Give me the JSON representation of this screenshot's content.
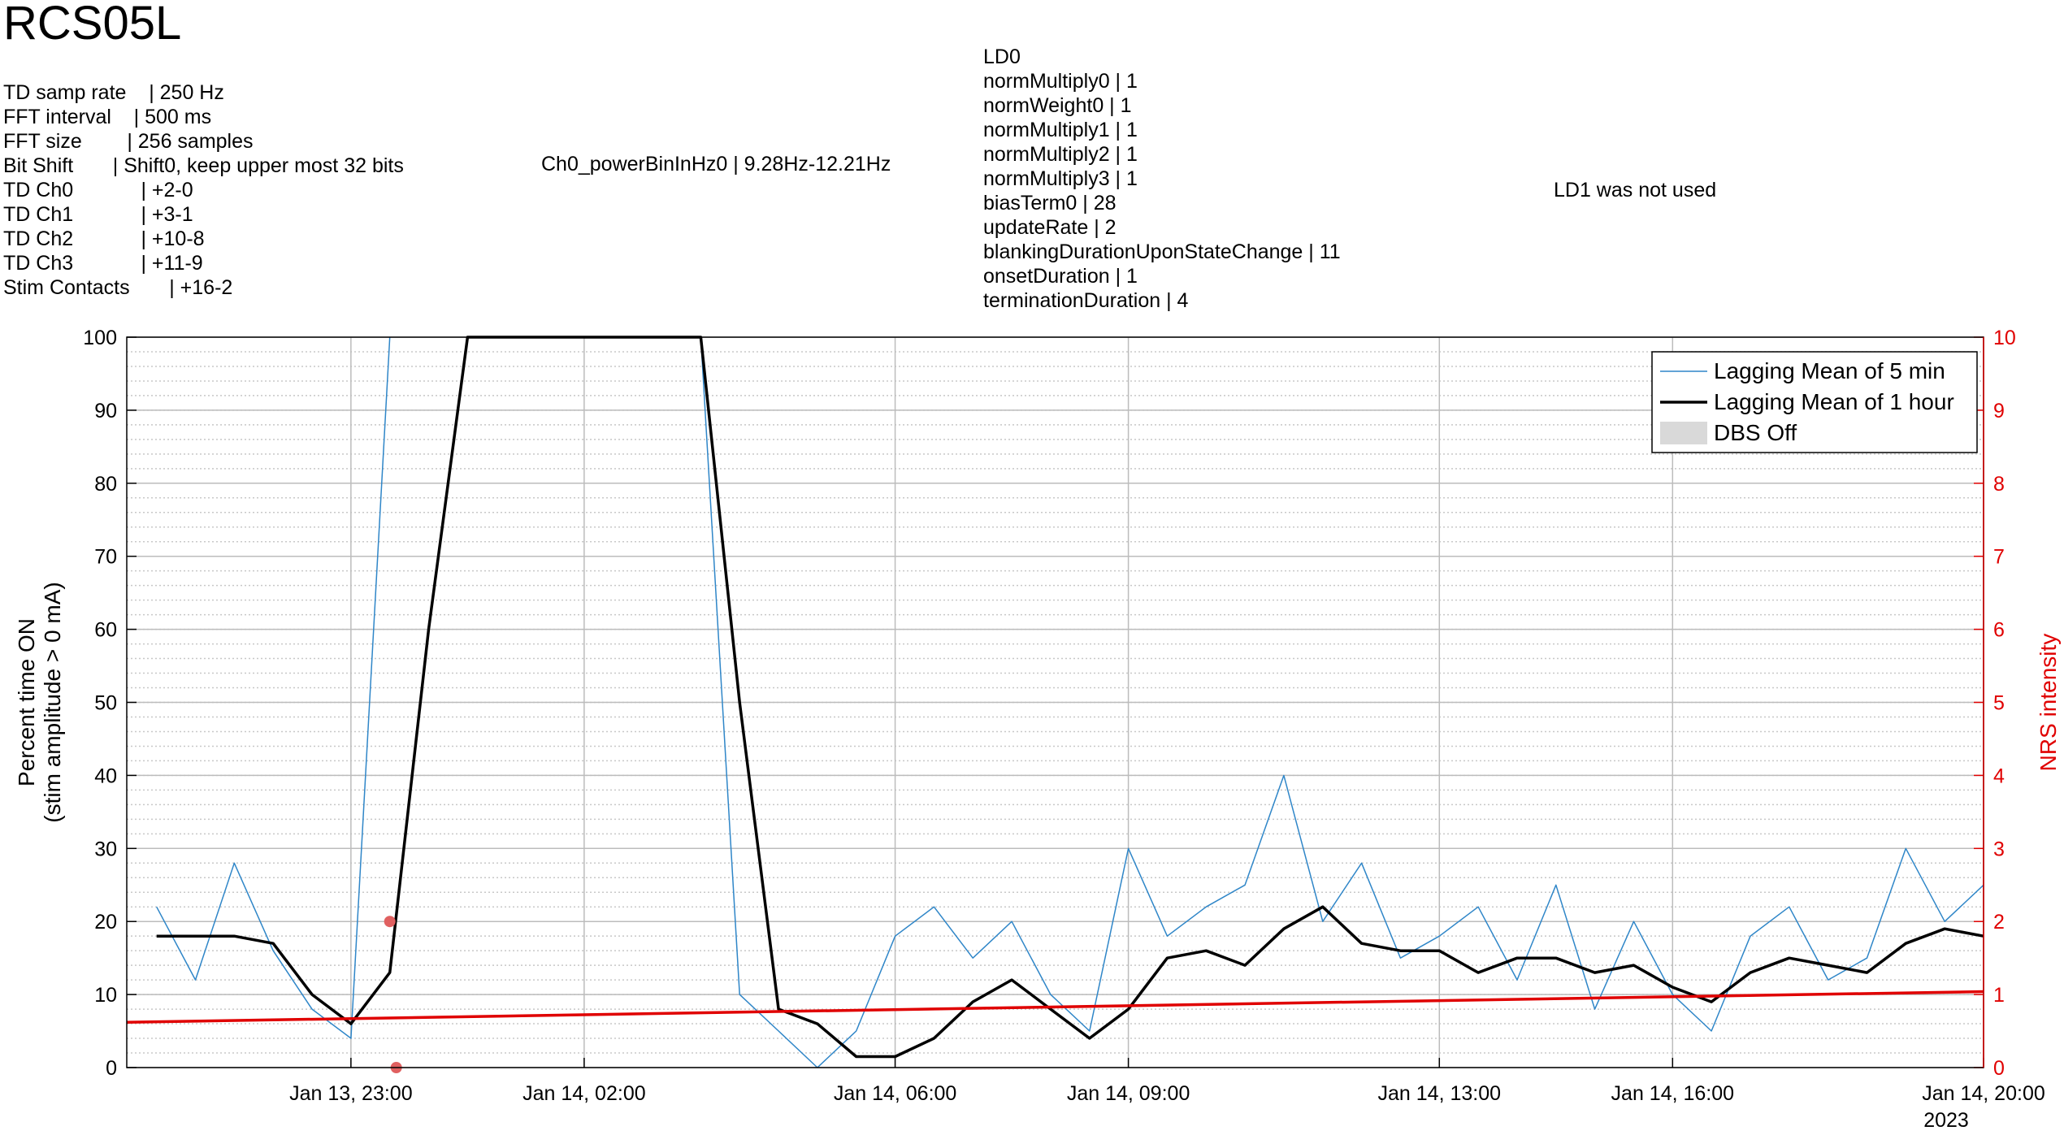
{
  "chart_data": {
    "type": "line",
    "title": "RCS05L",
    "settings_left": [
      "TD samp rate    | 250 Hz",
      "FFT interval    | 500 ms",
      "FFT size        | 256 samples",
      "Bit Shift       | Shift0, keep upper most 32 bits",
      "TD Ch0            | +2-0",
      "TD Ch1            | +3-1",
      "TD Ch2            | +10-8",
      "TD Ch3            | +11-9",
      "Stim Contacts       | +16-2"
    ],
    "settings_middle": "Ch0_powerBinInHz0 | 9.28Hz-12.21Hz",
    "settings_ld0": [
      "LD0",
      "normMultiply0 | 1",
      "normWeight0 | 1",
      "normMultiply1 | 1",
      "normMultiply2 | 1",
      "normMultiply3 | 1",
      "biasTerm0 | 28",
      "updateRate | 2",
      "blankingDurationUponStateChange | 11",
      "onsetDuration | 1",
      "terminationDuration | 4"
    ],
    "settings_ld1": "LD1 was not used",
    "ylabel": [
      "Percent time ON",
      "(stim amplitude > 0 mA)"
    ],
    "y2label": "NRS intensity",
    "x_secondary_label": "2023",
    "xlim": [
      "2023-01-13 20:07",
      "2023-01-14 20:00"
    ],
    "xticks": [
      {
        "value": "2023-01-13 23:00",
        "label": "Jan 13, 23:00"
      },
      {
        "value": "2023-01-14 02:00",
        "label": "Jan 14, 02:00"
      },
      {
        "value": "2023-01-14 06:00",
        "label": "Jan 14, 06:00"
      },
      {
        "value": "2023-01-14 09:00",
        "label": "Jan 14, 09:00"
      },
      {
        "value": "2023-01-14 13:00",
        "label": "Jan 14, 13:00"
      },
      {
        "value": "2023-01-14 16:00",
        "label": "Jan 14, 16:00"
      },
      {
        "value": "2023-01-14 20:00",
        "label": "Jan 14, 20:00"
      }
    ],
    "ylim": [
      0,
      100
    ],
    "yticks": [
      0,
      10,
      20,
      30,
      40,
      50,
      60,
      70,
      80,
      90,
      100
    ],
    "y2lim": [
      0,
      10
    ],
    "y2ticks": [
      0,
      1,
      2,
      3,
      4,
      5,
      6,
      7,
      8,
      9,
      10
    ],
    "y2color": "#e00000",
    "grid": true,
    "minor_grid": true,
    "legend": "upper right",
    "legend_patches": [
      {
        "name": "DBS Off",
        "color": "#d9d9d9"
      }
    ],
    "x": [
      "2023-01-13 20:30",
      "2023-01-13 21:00",
      "2023-01-13 21:30",
      "2023-01-13 22:00",
      "2023-01-13 22:30",
      "2023-01-13 23:00",
      "2023-01-13 23:30",
      "2023-01-14 00:00",
      "2023-01-14 00:30",
      "2023-01-14 01:00",
      "2023-01-14 01:30",
      "2023-01-14 02:00",
      "2023-01-14 02:30",
      "2023-01-14 03:00",
      "2023-01-14 03:30",
      "2023-01-14 04:00",
      "2023-01-14 04:30",
      "2023-01-14 05:00",
      "2023-01-14 05:30",
      "2023-01-14 06:00",
      "2023-01-14 06:30",
      "2023-01-14 07:00",
      "2023-01-14 07:30",
      "2023-01-14 08:00",
      "2023-01-14 08:30",
      "2023-01-14 09:00",
      "2023-01-14 09:30",
      "2023-01-14 10:00",
      "2023-01-14 10:30",
      "2023-01-14 11:00",
      "2023-01-14 11:30",
      "2023-01-14 12:00",
      "2023-01-14 12:30",
      "2023-01-14 13:00",
      "2023-01-14 13:30",
      "2023-01-14 14:00",
      "2023-01-14 14:30",
      "2023-01-14 15:00",
      "2023-01-14 15:30",
      "2023-01-14 16:00",
      "2023-01-14 16:30",
      "2023-01-14 17:00",
      "2023-01-14 17:30",
      "2023-01-14 18:00",
      "2023-01-14 18:30",
      "2023-01-14 19:00",
      "2023-01-14 19:30",
      "2023-01-14 20:00"
    ],
    "series": [
      {
        "name": "Lagging Mean of 5 min",
        "color": "#2f86c8",
        "width": 1.5,
        "values": [
          22,
          12,
          28,
          16,
          8,
          4,
          100,
          null,
          null,
          null,
          null,
          null,
          null,
          null,
          100,
          10,
          5,
          0,
          5,
          18,
          22,
          15,
          20,
          10,
          5,
          30,
          18,
          22,
          25,
          40,
          20,
          28,
          15,
          18,
          22,
          12,
          25,
          8,
          20,
          10,
          5,
          18,
          22,
          12,
          15,
          30,
          20,
          25
        ]
      },
      {
        "name": "Lagging Mean of 1 hour",
        "color": "#000000",
        "width": 3.5,
        "values": [
          18,
          18,
          18,
          17,
          10,
          6,
          13,
          60,
          100,
          100,
          100,
          100,
          100,
          100,
          100,
          50,
          8,
          6,
          1.5,
          1.5,
          4,
          9,
          12,
          8,
          4,
          8,
          15,
          16,
          14,
          19,
          22,
          17,
          16,
          16,
          13,
          15,
          15,
          13,
          14,
          11,
          9,
          13,
          15,
          14,
          13,
          17,
          19,
          18
        ]
      },
      {
        "type": "line",
        "axis": "y2",
        "color": "#e00000",
        "width": 3.5,
        "x": [
          "2023-01-13 20:07",
          "2023-01-14 20:00"
        ],
        "values": [
          0.62,
          1.04
        ]
      },
      {
        "type": "scatter",
        "axis": "y2",
        "color": "#e06060",
        "x": [
          "2023-01-13 23:30",
          "2023-01-13 23:35"
        ],
        "values": [
          2,
          0
        ]
      }
    ]
  }
}
